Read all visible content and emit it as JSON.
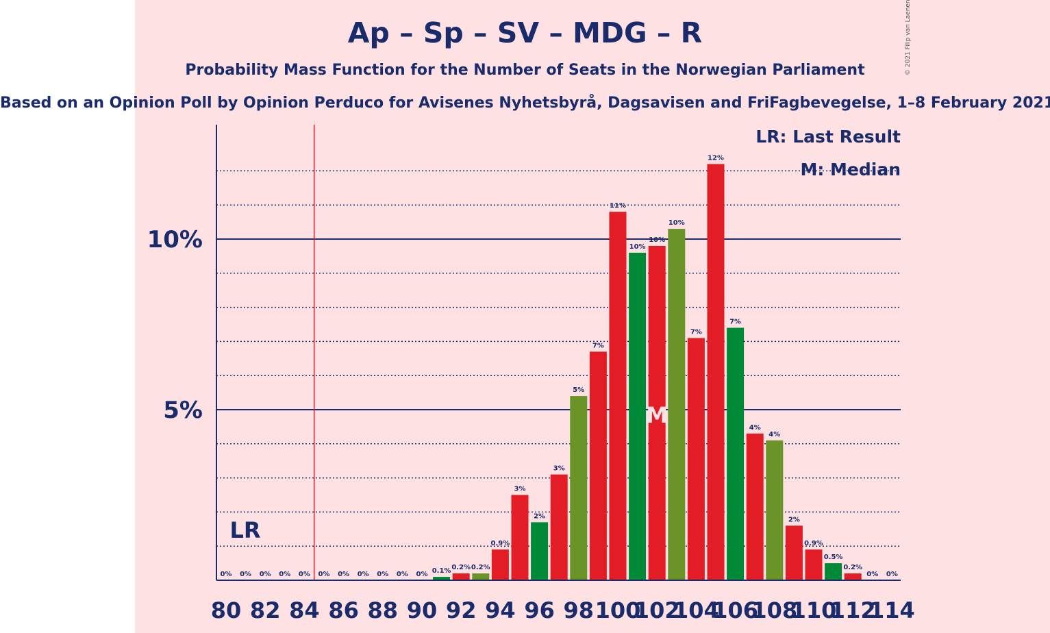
{
  "title": "Ap – Sp – SV – MDG – R",
  "subtitle": "Probability Mass Function for the Number of Seats in the Norwegian Parliament",
  "source": "Based on an Opinion Poll by Opinion Perduco for Avisenes Nyhetsbyrå, Dagsavisen and FriFagbevegelse, 1–8 February 2021",
  "copyright": "© 2021 Filip van Laenen",
  "legend": {
    "last_result": "LR: Last Result",
    "median": "M: Median"
  },
  "colors": {
    "red": "#e21d26",
    "green": "#008a38",
    "olive": "#6a9428",
    "navy": "#1a2b6b",
    "background_band": "#fde1e3"
  },
  "chart_data": {
    "type": "bar",
    "x": [
      80,
      81,
      82,
      83,
      84,
      85,
      86,
      87,
      88,
      89,
      90,
      91,
      92,
      93,
      94,
      95,
      96,
      97,
      98,
      99,
      100,
      101,
      102,
      103,
      104,
      105,
      106,
      107,
      108,
      109,
      110,
      111,
      112,
      113,
      114
    ],
    "values": [
      0,
      0,
      0,
      0,
      0,
      0,
      0,
      0,
      0,
      0,
      0,
      0.1,
      0.2,
      0.2,
      0.9,
      2.5,
      1.7,
      3.1,
      5.4,
      6.7,
      10.8,
      9.6,
      9.8,
      10.3,
      7.1,
      12.2,
      7.4,
      4.3,
      4.1,
      1.6,
      0.9,
      0.5,
      0.2,
      0,
      0
    ],
    "labels": [
      "0%",
      "0%",
      "0%",
      "0%",
      "0%",
      "0%",
      "0%",
      "0%",
      "0%",
      "0%",
      "0%",
      "0.1%",
      "0.2%",
      "0.2%",
      "0.9%",
      "3%",
      "2%",
      "3%",
      "5%",
      "7%",
      "11%",
      "10%",
      "10%",
      "10%",
      "7%",
      "12%",
      "7%",
      "4%",
      "4%",
      "2%",
      "0.9%",
      "0.5%",
      "0.2%",
      "0%",
      "0%"
    ],
    "bar_colors": [
      "red",
      "red",
      "red",
      "red",
      "red",
      "red",
      "red",
      "red",
      "red",
      "red",
      "red",
      "green",
      "red",
      "olive",
      "red",
      "red",
      "green",
      "red",
      "olive",
      "red",
      "red",
      "green",
      "red",
      "olive",
      "red",
      "red",
      "green",
      "red",
      "olive",
      "red",
      "red",
      "green",
      "red",
      "red",
      "red"
    ],
    "x_tick_labels": [
      "80",
      "82",
      "84",
      "86",
      "88",
      "90",
      "92",
      "94",
      "96",
      "98",
      "100",
      "102",
      "104",
      "106",
      "108",
      "110",
      "112",
      "114"
    ],
    "y_tick_labels": [
      "5%",
      "10%"
    ],
    "y_ticks": [
      5,
      10
    ],
    "ylim": [
      0,
      13.3
    ],
    "minor_gridlines": [
      1,
      2,
      3,
      4,
      6,
      7,
      8,
      9,
      11,
      12
    ],
    "last_result_seat": 85,
    "last_result_label": "LR",
    "median_seat": 102,
    "median_label": "M"
  }
}
